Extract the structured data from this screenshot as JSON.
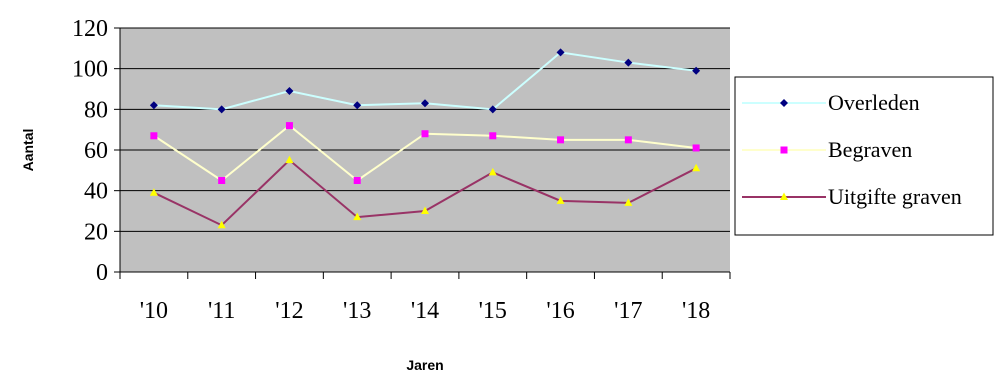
{
  "chart_data": {
    "type": "line",
    "title": "",
    "xlabel": "Jaren",
    "ylabel": "Aantal",
    "categories": [
      "'10",
      "'11",
      "'12",
      "'13",
      "'14",
      "'15",
      "'16",
      "'17",
      "'18"
    ],
    "ylim": [
      0,
      120
    ],
    "yticks": [
      "0",
      "20",
      "40",
      "60",
      "80",
      "100",
      "120"
    ],
    "grid": true,
    "legend_position": "right",
    "plot_background": "#c0c0c0",
    "series": [
      {
        "name": "Overleden",
        "values": [
          82,
          80,
          89,
          82,
          83,
          80,
          108,
          103,
          99
        ],
        "line_color": "#ccffff",
        "marker": "diamond",
        "marker_color": "#000080"
      },
      {
        "name": "Begraven",
        "values": [
          67,
          45,
          72,
          45,
          68,
          67,
          65,
          65,
          61
        ],
        "line_color": "#ffffcc",
        "marker": "square",
        "marker_color": "#ff00ff"
      },
      {
        "name": "Uitgifte graven",
        "values": [
          39,
          23,
          55,
          27,
          30,
          49,
          35,
          34,
          51
        ],
        "line_color": "#993366",
        "marker": "triangle",
        "marker_color": "#ffff00"
      }
    ]
  }
}
